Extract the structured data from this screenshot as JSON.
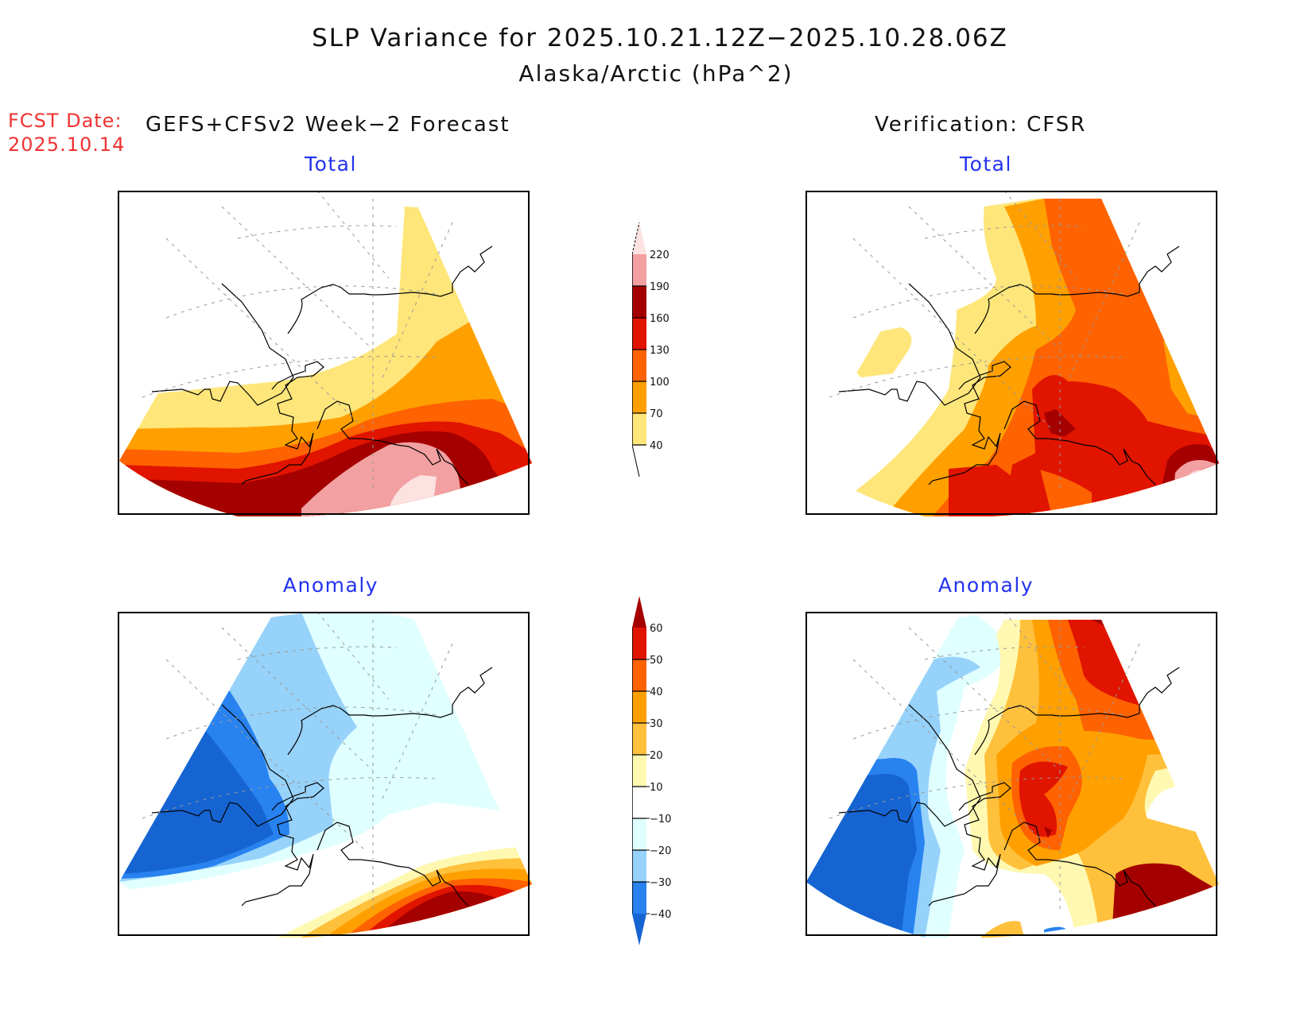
{
  "header": {
    "title": "SLP Variance for 2025.10.21.12Z−2025.10.28.06Z",
    "subtitle": "Alaska/Arctic (hPa^2)",
    "fcst_date_label": "FCST Date:",
    "fcst_date_value": "2025.10.14",
    "left_column_title": "GEFS+CFSv2 Week−2 Forecast",
    "right_column_title": "Verification: CFSR"
  },
  "panels": {
    "forecast_total": "Total",
    "verification_total": "Total",
    "forecast_anomaly": "Anomaly",
    "verification_anomaly": "Anomaly"
  },
  "chart_data": [
    {
      "type": "heatmap",
      "name": "forecast_total",
      "title": "Total",
      "column": "GEFS+CFSv2 Week-2 Forecast",
      "units": "hPa^2",
      "region": "Alaska/Arctic",
      "pattern": "Variance increases southward; <40 over Arctic/north Alaska, 40-100 across central Alaska, 130-190 along southern coast/Gulf of Alaska, >220 core in Gulf of Alaska"
    },
    {
      "type": "heatmap",
      "name": "verification_total",
      "title": "Total",
      "column": "Verification: CFSR",
      "units": "hPa^2",
      "region": "Alaska/Arctic",
      "pattern": "Low (<40) over west/Bering side; 70-130 over most of Alaska and Arctic east; 160-190 maximum near Cook Inlet and southeast Alaska; >220 core in southeast Gulf"
    },
    {
      "type": "heatmap",
      "name": "forecast_anomaly",
      "title": "Anomaly",
      "column": "GEFS+CFSv2 Week-2 Forecast",
      "units": "hPa^2",
      "region": "Alaska/Arctic",
      "pattern": "Negative anomalies (-40 and below) over Bering Sea/western Alaska; -10 to -20 over northern and interior Alaska; positive (>60) in Gulf of Alaska"
    },
    {
      "type": "heatmap",
      "name": "verification_anomaly",
      "title": "Anomaly",
      "column": "Verification: CFSR",
      "units": "hPa^2",
      "region": "Alaska/Arctic",
      "pattern": "Strong negative (<-40) over Bering Sea; positive 30-60 over interior/south-central Alaska and Arctic northeast; >60 in southeast Gulf of Alaska"
    }
  ],
  "colorbars": {
    "total": {
      "levels": [
        "40",
        "70",
        "100",
        "130",
        "160",
        "190",
        "220"
      ],
      "colors": [
        "#fee67a",
        "#ffa000",
        "#ff6200",
        "#e11400",
        "#a50000",
        "#f2a0a2",
        "#fde2e2"
      ]
    },
    "anomaly": {
      "levels": [
        "60",
        "50",
        "40",
        "30",
        "20",
        "10",
        "−10",
        "−20",
        "−30",
        "−40"
      ],
      "colors": [
        "#a50000",
        "#e11400",
        "#ff6200",
        "#ffa000",
        "#ffc03c",
        "#fff8b0",
        "#ffffff",
        "#e0ffff",
        "#96d2fa",
        "#2882f0",
        "#1664d2"
      ]
    }
  }
}
